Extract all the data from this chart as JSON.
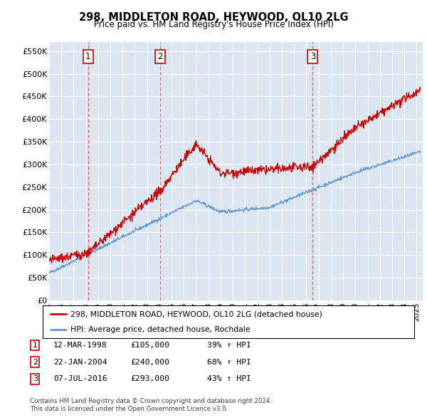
{
  "title1": "298, MIDDLETON ROAD, HEYWOOD, OL10 2LG",
  "title2": "Price paid vs. HM Land Registry's House Price Index (HPI)",
  "ylim": [
    0,
    570000
  ],
  "xlim_start": 1995.0,
  "xlim_end": 2025.5,
  "sale_dates": [
    1998.19,
    2004.07,
    2016.52
  ],
  "sale_prices": [
    105000,
    240000,
    293000
  ],
  "sale_labels": [
    "1",
    "2",
    "3"
  ],
  "sale_date_strs": [
    "12-MAR-1998",
    "22-JAN-2004",
    "07-JUL-2016"
  ],
  "sale_price_strs": [
    "£105,000",
    "£240,000",
    "£293,000"
  ],
  "sale_hpi_strs": [
    "39% ↑ HPI",
    "68% ↑ HPI",
    "43% ↑ HPI"
  ],
  "red_color": "#cc0000",
  "blue_color": "#6699cc",
  "dashed_color": "#ff6666",
  "box_color": "#cc0000",
  "background_chart": "#dce6f1",
  "legend_label_red": "298, MIDDLETON ROAD, HEYWOOD, OL10 2LG (detached house)",
  "legend_label_blue": "HPI: Average price, detached house, Rochdale",
  "footer1": "Contains HM Land Registry data © Crown copyright and database right 2024.",
  "footer2": "This data is licensed under the Open Government Licence v3.0."
}
